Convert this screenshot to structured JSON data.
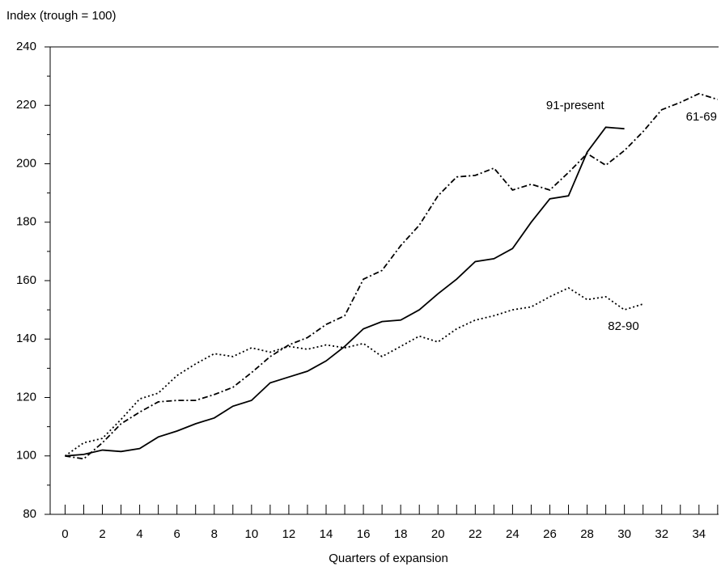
{
  "chart_data": {
    "type": "line",
    "y_axis_label": "Index (trough = 100)",
    "x_axis_label": "Quarters of expansion",
    "xlim": [
      -0.8,
      35.05
    ],
    "ylim": [
      80,
      240
    ],
    "xticks": [
      0,
      2,
      4,
      6,
      8,
      10,
      12,
      14,
      16,
      18,
      20,
      22,
      24,
      26,
      28,
      30,
      32,
      34
    ],
    "xminorticks": [
      1,
      3,
      5,
      7,
      9,
      11,
      13,
      15,
      17,
      19,
      21,
      23,
      25,
      27,
      29,
      31,
      33,
      35
    ],
    "yticks": [
      80,
      100,
      120,
      140,
      160,
      180,
      200,
      220,
      240
    ],
    "yminorticks": [
      90,
      110,
      130,
      150,
      170,
      190,
      210,
      230
    ],
    "x": [
      0,
      1,
      2,
      3,
      4,
      5,
      6,
      7,
      8,
      9,
      10,
      11,
      12,
      13,
      14,
      15,
      16,
      17,
      18,
      19,
      20,
      21,
      22,
      23,
      24,
      25,
      26,
      27,
      28,
      29,
      30,
      31,
      32,
      33,
      34,
      35
    ],
    "series": [
      {
        "name": "91-present",
        "color": "#000000",
        "style": "solid",
        "values": [
          100,
          100.5,
          102,
          101.5,
          102.5,
          106.5,
          108.5,
          111,
          113,
          117,
          119,
          125,
          127,
          129,
          132.5,
          137.5,
          143.5,
          146,
          146.5,
          150,
          155.5,
          160.5,
          166.5,
          167.5,
          171,
          180,
          188,
          189,
          204,
          212.5,
          212,
          null,
          null,
          null,
          null,
          null
        ]
      },
      {
        "name": "61-69",
        "color": "#000000",
        "style": "dashdot",
        "values": [
          100,
          99,
          104.5,
          111,
          115,
          118.5,
          119,
          119,
          121,
          123.5,
          128.5,
          134,
          138,
          140.5,
          145,
          148,
          160.5,
          163.5,
          172,
          179,
          189,
          195.5,
          196,
          198.5,
          191,
          193,
          191,
          197,
          203.5,
          199.5,
          204.5,
          211,
          218.5,
          221,
          224,
          222
        ]
      },
      {
        "name": "82-90",
        "color": "#000000",
        "style": "dotted",
        "values": [
          100,
          104.5,
          106,
          112.5,
          119.5,
          121.5,
          127.5,
          131.5,
          135,
          134,
          137,
          135.5,
          137.5,
          136.5,
          138,
          137,
          138.5,
          134,
          137.5,
          141,
          139,
          143.5,
          146.5,
          148,
          150,
          151,
          154.5,
          157.5,
          153.5,
          154.5,
          150,
          152,
          null,
          null,
          null,
          null
        ]
      }
    ]
  }
}
